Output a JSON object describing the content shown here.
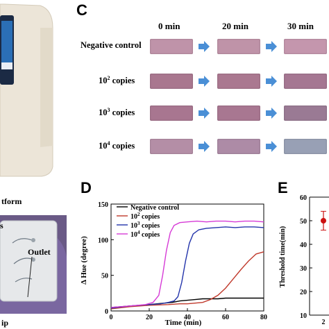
{
  "panels": {
    "left_caption_top": "tform",
    "left_caption_bottom": "ip",
    "left_outlet": "Outlet",
    "left_s": "s",
    "c_letter": "C",
    "d_letter": "D",
    "e_letter": "E"
  },
  "panel_c": {
    "times": [
      "0 min",
      "20 min",
      "30 min"
    ],
    "rows": [
      {
        "label_main": "Negative control",
        "label_sup": "",
        "label_tail": "",
        "colors": [
          "#bf93a9",
          "#bf93a8",
          "#c496ad"
        ]
      },
      {
        "label_main": "10",
        "label_sup": "2",
        "label_tail": " copies",
        "colors": [
          "#a9778f",
          "#aa7890",
          "#a57792"
        ]
      },
      {
        "label_main": "10",
        "label_sup": "3",
        "label_tail": " copies",
        "colors": [
          "#a87690",
          "#a87791",
          "#9a7a94"
        ]
      },
      {
        "label_main": "10",
        "label_sup": "4",
        "label_tail": " copies",
        "colors": [
          "#b48ea6",
          "#ad8ba6",
          "#98a0b5"
        ]
      }
    ],
    "arrow_color": "#4a8fd6"
  },
  "chart_data": [
    {
      "type": "line",
      "xlabel": "Time (min)",
      "ylabel": "Δ Hue (degree)",
      "xlim": [
        0,
        80
      ],
      "ylim": [
        0,
        150
      ],
      "xticks": [
        "0",
        "20",
        "40",
        "60",
        "80"
      ],
      "yticks": [
        "0",
        "50",
        "100",
        "150"
      ],
      "legend_position": "top-left",
      "series": [
        {
          "name": "Negative control",
          "color": "#000000",
          "x": [
            0,
            10,
            20,
            24,
            28,
            32,
            36,
            40,
            44,
            48,
            52,
            56,
            60,
            64,
            68,
            72,
            76,
            80
          ],
          "y": [
            5,
            7,
            9,
            10,
            11,
            12,
            14,
            15,
            16,
            17,
            17,
            17,
            18,
            18,
            18,
            18,
            18,
            18
          ]
        },
        {
          "name": "10",
          "name_sup": "2",
          "name_tail": " copies",
          "color": "#c0392b",
          "x": [
            0,
            10,
            20,
            30,
            36,
            40,
            44,
            48,
            52,
            56,
            60,
            64,
            68,
            72,
            76,
            80
          ],
          "y": [
            3,
            6,
            8,
            9,
            10,
            10,
            11,
            12,
            16,
            22,
            32,
            45,
            58,
            70,
            80,
            83
          ]
        },
        {
          "name": "10",
          "name_sup": "3",
          "name_tail": " copies",
          "color": "#2233aa",
          "x": [
            0,
            10,
            20,
            26,
            30,
            33,
            35,
            37,
            39,
            41,
            43,
            46,
            50,
            55,
            60,
            65,
            70,
            75,
            80
          ],
          "y": [
            4,
            7,
            9,
            10,
            12,
            14,
            20,
            40,
            70,
            95,
            108,
            114,
            116,
            117,
            118,
            117,
            118,
            118,
            117
          ]
        },
        {
          "name": "10",
          "name_sup": "4",
          "name_tail": " copies",
          "color": "#d63ad6",
          "x": [
            0,
            10,
            18,
            22,
            25,
            27,
            29,
            31,
            33,
            36,
            40,
            45,
            50,
            55,
            60,
            65,
            70,
            75,
            80
          ],
          "y": [
            5,
            7,
            9,
            12,
            22,
            50,
            85,
            110,
            120,
            124,
            125,
            126,
            125,
            126,
            126,
            125,
            126,
            126,
            125
          ]
        }
      ]
    },
    {
      "type": "scatter",
      "xlabel": "",
      "ylabel": "Threshold time(min)",
      "ylim": [
        10,
        60
      ],
      "yticks": [
        "10",
        "20",
        "30",
        "40",
        "50",
        "60"
      ],
      "xtick_visible": "2",
      "points": [
        {
          "x": "2",
          "y": 50,
          "err": 4
        }
      ],
      "color": "#cc1111"
    }
  ]
}
